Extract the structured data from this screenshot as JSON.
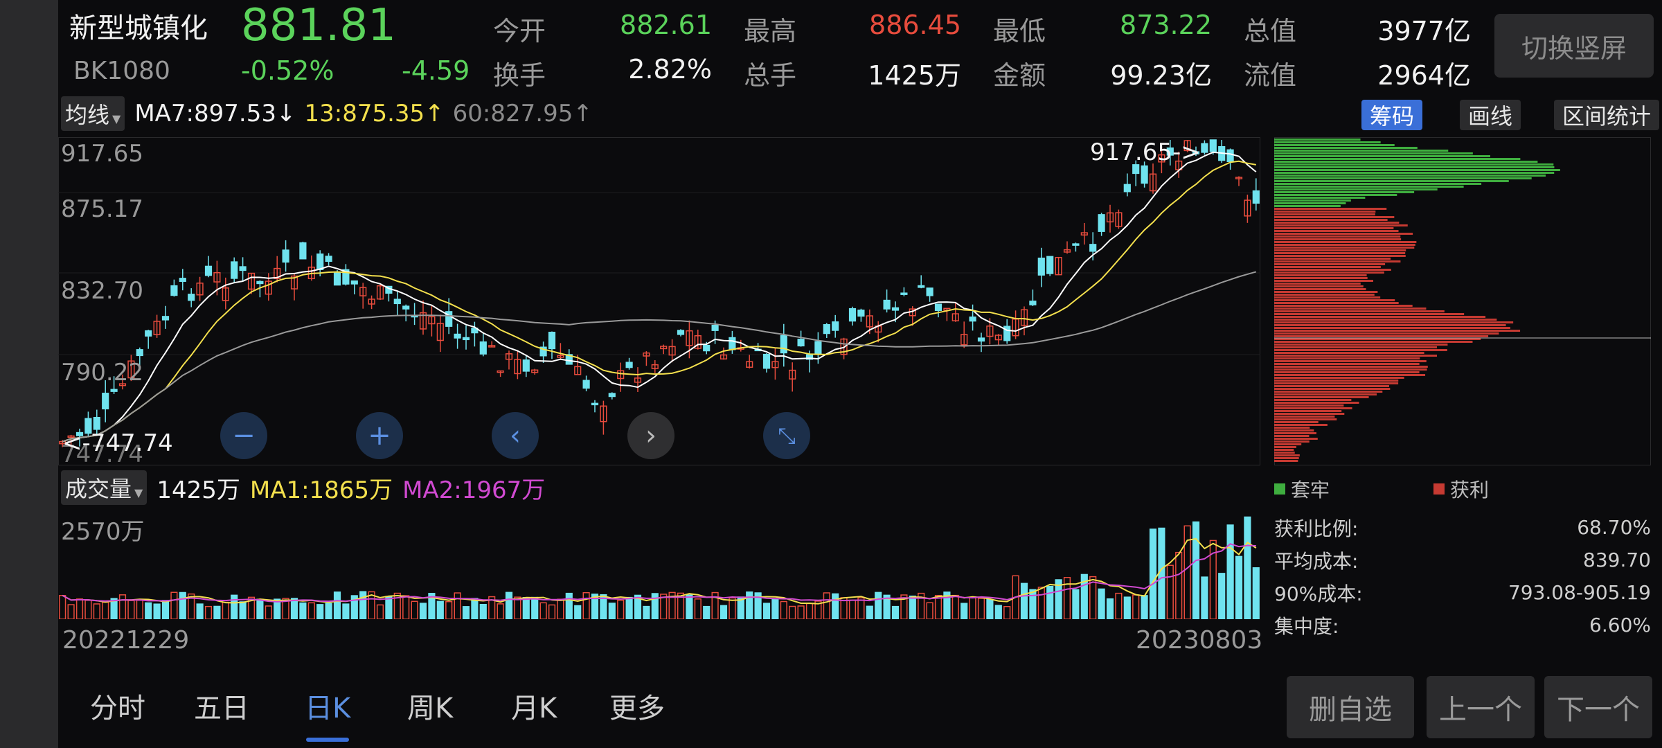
{
  "header": {
    "name": "新型城镇化",
    "price": "881.81",
    "code": "BK1080",
    "change_pct": "-0.52%",
    "change": "-4.59",
    "stats": [
      {
        "label": "今开",
        "value": "882.61",
        "color": "green"
      },
      {
        "label": "最高",
        "value": "886.45",
        "color": "red"
      },
      {
        "label": "最低",
        "value": "873.22",
        "color": "green"
      },
      {
        "label": "总值",
        "value": "3977亿",
        "color": "white"
      },
      {
        "label": "换手",
        "value": "2.82%",
        "color": "white"
      },
      {
        "label": "总手",
        "value": "1425万",
        "color": "white"
      },
      {
        "label": "金额",
        "value": "99.23亿",
        "color": "white"
      },
      {
        "label": "流值",
        "value": "2964亿",
        "color": "white"
      }
    ],
    "switch_label": "切换竖屏"
  },
  "ma_bar": {
    "selector": "均线",
    "ma7": "MA7:897.53↓",
    "ma13": "13:875.35↑",
    "ma60": "60:827.95↑",
    "tools": [
      "筹码",
      "画线",
      "区间统计"
    ]
  },
  "kchart": {
    "price_labels": [
      "917.65",
      "875.17",
      "832.70",
      "790.22",
      "747.74"
    ],
    "high_marker": "917.65->",
    "low_marker": "<-747.74",
    "controls": [
      "zoom-out",
      "zoom-in",
      "pan-left",
      "pan-right",
      "collapse"
    ]
  },
  "volume_bar": {
    "selector": "成交量",
    "value": "1425万",
    "ma1": "MA1:1865万",
    "ma2": "MA2:1967万",
    "max_label": "2570万"
  },
  "dates": {
    "start": "20221229",
    "end": "20230803"
  },
  "chip": {
    "legend_trapped": "套牢",
    "legend_profit": "获利",
    "stats": [
      {
        "label": "获利比例:",
        "value": "68.70%"
      },
      {
        "label": "平均成本:",
        "value": "839.70"
      },
      {
        "label": "90%成本:",
        "value": "793.08-905.19"
      },
      {
        "label": "集中度:",
        "value": "6.60%"
      }
    ]
  },
  "tabs": [
    "分时",
    "五日",
    "日K",
    "周K",
    "月K",
    "更多"
  ],
  "active_tab": "日K",
  "buttons": {
    "remove": "删自选",
    "prev": "上一个",
    "next": "下一个"
  },
  "colors": {
    "up": "#e84c3d",
    "down": "#6fe3ef",
    "ma7": "#ffffff",
    "ma13": "#f4e04d",
    "ma60": "#9a9a9a",
    "trapped": "#3fae3f",
    "profit": "#c63a32",
    "accent": "#3a6fd8"
  }
}
